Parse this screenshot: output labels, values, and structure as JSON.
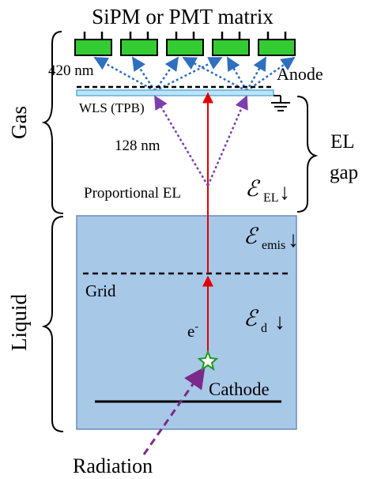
{
  "header": {
    "title": "SiPM or PMT matrix"
  },
  "labels": {
    "wavelength_420": "420 nm",
    "anode": "Anode",
    "wls": "WLS (TPB)",
    "wavelength_128": "128 nm",
    "proportional_el": "Proportional EL",
    "el": "EL",
    "gap": "gap",
    "grid": "Grid",
    "electron": "e",
    "electron_sup": "-",
    "cathode": "Cathode",
    "radiation": "Radiation"
  },
  "regions": {
    "gas": "Gas",
    "liquid": "Liquid"
  },
  "fields": {
    "symbol": "ℰ",
    "el_sub": "EL",
    "emis_sub": "emis",
    "d_sub": "d",
    "arrow": "↓"
  },
  "colors": {
    "sensor_fill": "#33cc33",
    "wls_fill": "#bfe3f4",
    "wls_stroke": "#5aaedc",
    "liquid_fill": "#a8c8e8",
    "liquid_stroke": "#6a8bb8",
    "electron_track": "#e00000",
    "vuv_photons": "#7b3fb0",
    "visible_photons": "#2f6fc0",
    "radiation": "#7a2a8a",
    "interaction_star": "#1f9a1f"
  },
  "sensors": {
    "count": 5
  }
}
